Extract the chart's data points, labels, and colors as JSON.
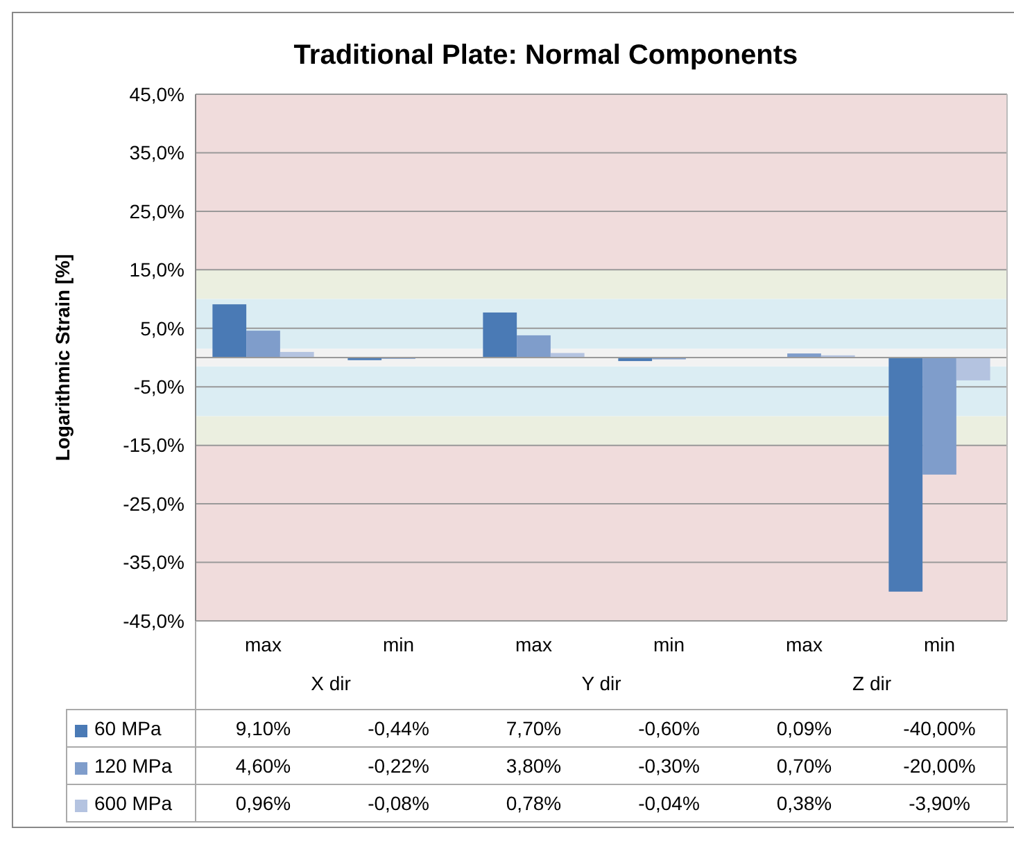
{
  "chart_data": {
    "type": "bar",
    "title": "Traditional Plate: Normal Components",
    "ylabel": "Logarithmic Strain [%]",
    "categories": [
      "max",
      "min",
      "max",
      "min",
      "max",
      "min"
    ],
    "annotations": [
      "X dir",
      "Y dir",
      "Z dir"
    ],
    "series": [
      {
        "name": "60 MPa",
        "color": "#4a7ab5",
        "values": [
          9.1,
          -0.44,
          7.7,
          -0.6,
          0.09,
          -40.0
        ],
        "value_labels": [
          "9,10%",
          "-0,44%",
          "7,70%",
          "-0,60%",
          "0,09%",
          "-40,00%"
        ]
      },
      {
        "name": "120 MPa",
        "color": "#7f9dcb",
        "values": [
          4.6,
          -0.22,
          3.8,
          -0.3,
          0.7,
          -20.0
        ],
        "value_labels": [
          "4,60%",
          "-0,22%",
          "3,80%",
          "-0,30%",
          "0,70%",
          "-20,00%"
        ]
      },
      {
        "name": "600 MPa",
        "color": "#b4c3e0",
        "values": [
          0.96,
          -0.08,
          0.78,
          -0.04,
          0.38,
          -3.9
        ],
        "value_labels": [
          "0,96%",
          "-0,08%",
          "0,78%",
          "-0,04%",
          "0,38%",
          "-3,90%"
        ]
      }
    ],
    "ylim": [
      -45,
      45
    ],
    "yticks": [
      {
        "value": 45,
        "label": "45,0%"
      },
      {
        "value": 35,
        "label": "35,0%"
      },
      {
        "value": 25,
        "label": "25,0%"
      },
      {
        "value": 15,
        "label": "15,0%"
      },
      {
        "value": 5,
        "label": "5,0%"
      },
      {
        "value": -5,
        "label": "-5,0%"
      },
      {
        "value": -15,
        "label": "-15,0%"
      },
      {
        "value": -25,
        "label": "-25,0%"
      },
      {
        "value": -35,
        "label": "-35,0%"
      },
      {
        "value": -45,
        "label": "-45,0%"
      }
    ],
    "bands": [
      {
        "axis": "y",
        "from": 15,
        "to": 45,
        "color": "#f0dcdc"
      },
      {
        "axis": "y",
        "from": -45,
        "to": -15,
        "color": "#f0dcdc"
      },
      {
        "axis": "y",
        "from": 10,
        "to": 15,
        "color": "#ebefe0"
      },
      {
        "axis": "y",
        "from": -15,
        "to": -10,
        "color": "#ebefe0"
      },
      {
        "axis": "y",
        "from": 1.5,
        "to": 10,
        "color": "#dbedf3"
      },
      {
        "axis": "y",
        "from": -10,
        "to": -1.5,
        "color": "#dbedf3"
      },
      {
        "axis": "y",
        "from": -1.5,
        "to": 1.5,
        "color": "#f2f2f2"
      }
    ],
    "grid": "y",
    "legend": "bottom"
  }
}
